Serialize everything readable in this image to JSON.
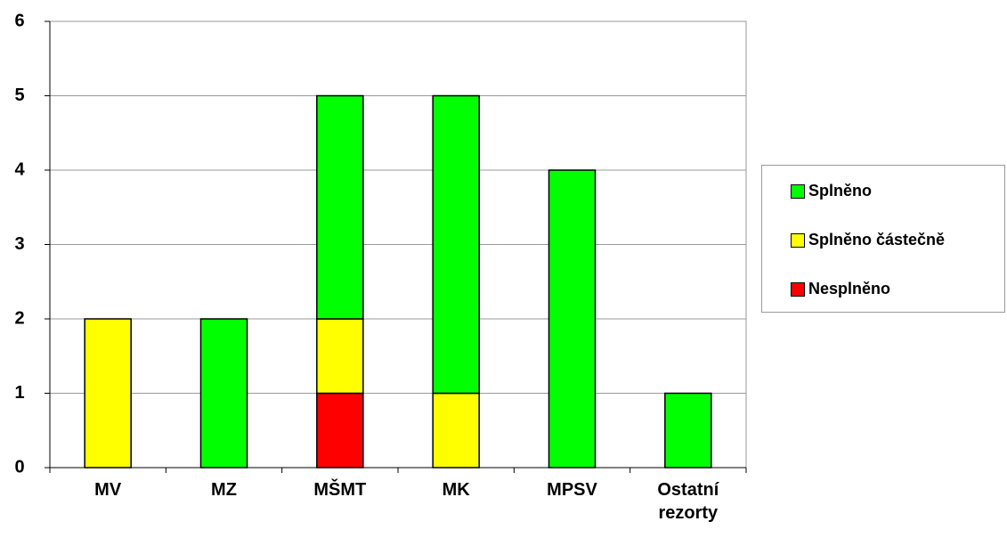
{
  "chart_data": {
    "type": "bar",
    "stacked": true,
    "categories": [
      "MV",
      "MZ",
      "MŠMT",
      "MK",
      "MPSV",
      "Ostatní rezorty"
    ],
    "series": [
      {
        "name": "Splněno",
        "color": "#00ff00",
        "values": [
          0,
          2,
          3,
          4,
          4,
          1
        ]
      },
      {
        "name": "Splněno částečně",
        "color": "#ffff00",
        "values": [
          2,
          0,
          1,
          1,
          0,
          0
        ]
      },
      {
        "name": "Nesplněno",
        "color": "#ff0000",
        "values": [
          0,
          0,
          1,
          0,
          0,
          0
        ]
      }
    ],
    "ylim": [
      0,
      6
    ],
    "yticks": [
      0,
      1,
      2,
      3,
      4,
      5,
      6
    ],
    "grid": true,
    "legend": "right"
  }
}
